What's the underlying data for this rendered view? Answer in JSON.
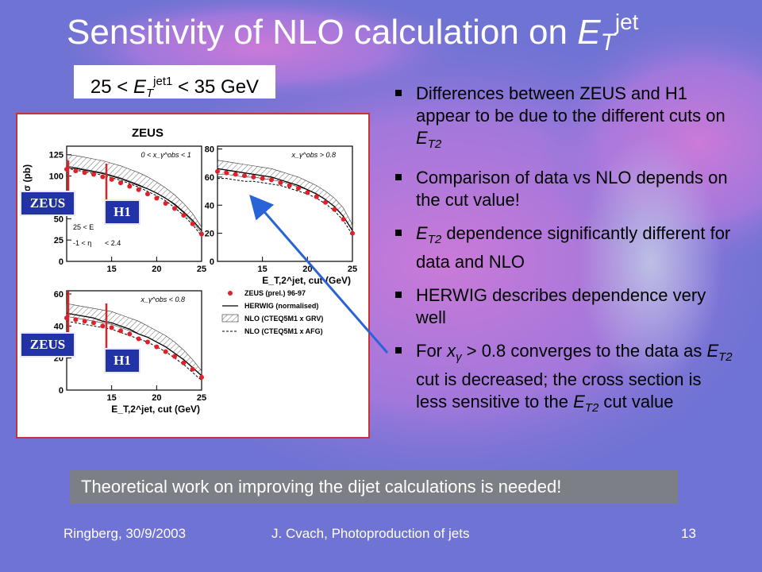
{
  "slide": {
    "title_main": "Sensitivity of NLO calculation on ",
    "title_var": "E",
    "title_sub": "T",
    "title_sup": "jet",
    "range": {
      "prefix": "25 < ",
      "var": "E",
      "sub": "T",
      "sup": "jet1",
      "suffix": " < 35 GeV"
    },
    "bullets": [
      {
        "pre": "Differences between ZEUS and H1 appear to be due to the different cuts on ",
        "var": "E",
        "sub": "T2",
        "post": ""
      },
      {
        "pre": "Comparison of data vs NLO depends on the cut value!",
        "var": "",
        "sub": "",
        "post": ""
      },
      {
        "pre": "",
        "var": "E",
        "sub": "T2",
        "post": " dependence significantly different for data and NLO"
      },
      {
        "pre": "HERWIG describes dependence very well",
        "var": "",
        "sub": "",
        "post": ""
      },
      {
        "pre": "For ",
        "var": "x",
        "sub": "γ",
        "post": " > 0.8 converges to the data as ",
        "var2": "E",
        "sub2": "T2",
        "post2": " cut is decreased; the cross section is less sensitive to the ",
        "var3": "E",
        "sub3": "T2",
        "post3": " cut value"
      }
    ],
    "conclusion": "Theoretical work on improving the dijet calculations is needed!",
    "footer": {
      "left": "Ringberg, 30/9/2003",
      "center": "J. Cvach, Photoproduction of jets",
      "page": "13"
    },
    "tags": {
      "zeus": "ZEUS",
      "h1": "H1"
    }
  },
  "chart_data": [
    {
      "type": "line",
      "title": "ZEUS",
      "panel": "top-left",
      "annotation": "0 < x_γ^obs < 1",
      "inset_text": [
        "25 < E",
        "-1 < η",
        "< 2.4"
      ],
      "ylabel": "σ (pb)",
      "ylim": [
        0,
        135
      ],
      "yticks": [
        0,
        25,
        50,
        75,
        100,
        125
      ],
      "xlim": [
        10,
        25
      ],
      "xticks": [
        15,
        20,
        25
      ],
      "data": {
        "x": [
          10,
          11,
          12,
          13,
          14,
          15,
          16,
          17,
          18,
          19,
          20,
          21,
          22,
          23,
          24,
          25
        ],
        "y": [
          108,
          106,
          104,
          102,
          99,
          96,
          92,
          88,
          84,
          79,
          74,
          68,
          62,
          54,
          44,
          32
        ]
      },
      "nlo_upper": [
        125,
        124,
        122,
        120,
        118,
        115,
        112,
        108,
        104,
        99,
        93,
        86,
        78,
        68,
        56,
        40
      ],
      "nlo_lower": [
        112,
        110,
        108,
        106,
        104,
        101,
        98,
        94,
        90,
        85,
        80,
        74,
        66,
        57,
        46,
        33
      ],
      "herwig": [
        110,
        109,
        107,
        105,
        103,
        100,
        97,
        93,
        89,
        85,
        80,
        74,
        67,
        58,
        48,
        36
      ]
    },
    {
      "type": "line",
      "panel": "top-right",
      "annotation": "x_γ^obs > 0.8",
      "xlabel": "E_T,2^jet, cut (GeV)",
      "ylim": [
        0,
        82
      ],
      "yticks": [
        0,
        20,
        40,
        60,
        80
      ],
      "xlim": [
        10,
        25
      ],
      "xticks": [
        15,
        20,
        25
      ],
      "data": {
        "x": [
          10,
          11,
          12,
          13,
          14,
          15,
          16,
          17,
          18,
          19,
          20,
          21,
          22,
          23,
          24,
          25
        ],
        "y": [
          64,
          63,
          62,
          61,
          60,
          59,
          58,
          56,
          54,
          52,
          49,
          46,
          42,
          37,
          30,
          20
        ]
      },
      "nlo_upper": [
        72,
        71,
        70,
        69,
        68,
        67,
        66,
        64,
        62,
        60,
        57,
        54,
        50,
        45,
        38,
        26
      ],
      "nlo_lower": [
        62,
        62,
        61,
        60,
        60,
        59,
        58,
        57,
        55,
        53,
        51,
        48,
        44,
        39,
        32,
        22
      ],
      "herwig": [
        66,
        65,
        64,
        63,
        62,
        61,
        60,
        58,
        56,
        54,
        51,
        48,
        44,
        39,
        32,
        22
      ]
    },
    {
      "type": "line",
      "panel": "bottom-left",
      "annotation": "x_γ^obs < 0.8",
      "xlabel": "E_T,2^jet, cut (GeV)",
      "ylim": [
        0,
        62
      ],
      "yticks": [
        0,
        20,
        40,
        60
      ],
      "xlim": [
        10,
        25
      ],
      "xticks": [
        15,
        20,
        25
      ],
      "legend": [
        "ZEUS (prel.) 96-97",
        "HERWIG (normalised)",
        "NLO (CTEQ5M1 x GRV)",
        "NLO (CTEQ5M1 x AFG)"
      ],
      "data": {
        "x": [
          10,
          11,
          12,
          13,
          14,
          15,
          16,
          17,
          18,
          19,
          20,
          21,
          22,
          23,
          24,
          25
        ],
        "y": [
          45,
          44,
          43,
          42,
          40,
          39,
          37,
          35,
          32,
          30,
          27,
          24,
          21,
          17,
          13,
          8
        ]
      },
      "nlo_upper": [
        54,
        53,
        52,
        51,
        50,
        49,
        47,
        45,
        43,
        40,
        37,
        34,
        30,
        25,
        19,
        12
      ],
      "nlo_lower": [
        46,
        45,
        44,
        43,
        42,
        41,
        39,
        37,
        35,
        33,
        30,
        27,
        23,
        19,
        14,
        9
      ],
      "herwig": [
        48,
        47,
        46,
        45,
        43,
        42,
        40,
        38,
        35,
        33,
        30,
        27,
        23,
        19,
        14,
        9
      ]
    }
  ]
}
